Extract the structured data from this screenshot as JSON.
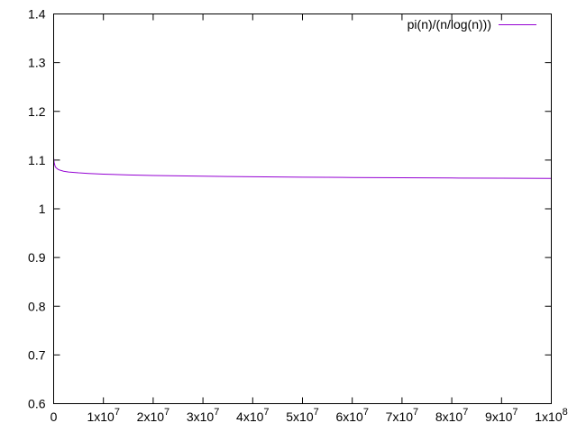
{
  "chart_data": {
    "type": "line",
    "title": "",
    "xlabel": "",
    "ylabel": "",
    "xlim": [
      0,
      100000000
    ],
    "ylim": [
      0.6,
      1.4
    ],
    "grid": false,
    "legend_position": "top-right",
    "x_ticks": [
      {
        "value": 0,
        "mantissa": "0",
        "exponent": ""
      },
      {
        "value": 10000000,
        "mantissa": "1x10",
        "exponent": "7"
      },
      {
        "value": 20000000,
        "mantissa": "2x10",
        "exponent": "7"
      },
      {
        "value": 30000000,
        "mantissa": "3x10",
        "exponent": "7"
      },
      {
        "value": 40000000,
        "mantissa": "4x10",
        "exponent": "7"
      },
      {
        "value": 50000000,
        "mantissa": "5x10",
        "exponent": "7"
      },
      {
        "value": 60000000,
        "mantissa": "6x10",
        "exponent": "7"
      },
      {
        "value": 70000000,
        "mantissa": "7x10",
        "exponent": "7"
      },
      {
        "value": 80000000,
        "mantissa": "8x10",
        "exponent": "7"
      },
      {
        "value": 90000000,
        "mantissa": "9x10",
        "exponent": "7"
      },
      {
        "value": 100000000,
        "mantissa": "1x10",
        "exponent": "8"
      }
    ],
    "y_ticks": [
      {
        "value": 0.6,
        "label": "0.6"
      },
      {
        "value": 0.7,
        "label": "0.7"
      },
      {
        "value": 0.8,
        "label": "0.8"
      },
      {
        "value": 0.9,
        "label": "0.9"
      },
      {
        "value": 1.0,
        "label": "1"
      },
      {
        "value": 1.1,
        "label": "1.1"
      },
      {
        "value": 1.2,
        "label": "1.2"
      },
      {
        "value": 1.3,
        "label": "1.3"
      },
      {
        "value": 1.4,
        "label": "1.4"
      }
    ],
    "series": [
      {
        "name": "pi(n)/(n/log(n)))",
        "color": "#9400d3",
        "x": [
          2,
          100000,
          300000,
          500000,
          1000000,
          2000000,
          3000000,
          5000000,
          7000000,
          10000000,
          15000000,
          20000000,
          25000000,
          30000000,
          35000000,
          40000000,
          50000000,
          55000000,
          60000000,
          70000000,
          80000000,
          90000000,
          100000000
        ],
        "y": [
          1.105,
          1.095,
          1.087,
          1.084,
          1.0802,
          1.0772,
          1.0756,
          1.0738,
          1.0725,
          1.0711,
          1.0695,
          1.0684,
          1.0676,
          1.0669,
          1.0663,
          1.0658,
          1.065,
          1.0646,
          1.0643,
          1.0637,
          1.0632,
          1.0628,
          1.0624
        ]
      }
    ]
  }
}
